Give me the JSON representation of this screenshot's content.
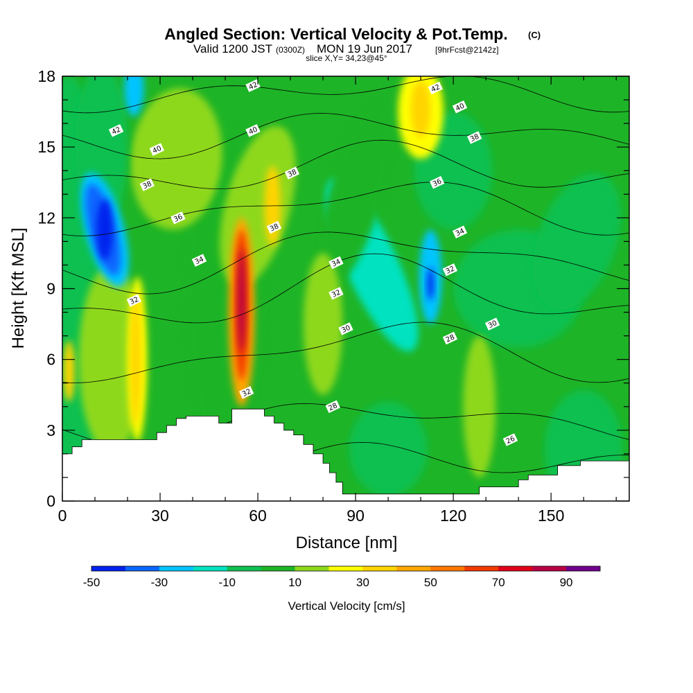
{
  "header": {
    "title": "Angled Section: Vertical Velocity & Pot.Temp.",
    "copyright": "(C)",
    "subtitle_a": "Valid 1200 JST",
    "subtitle_b": "(0300Z)",
    "subtitle_c": "MON 19 Jun 2017",
    "subtitle_d": "[9hrFcst@2142z]",
    "slice": "slice X,Y= 34,23@45°"
  },
  "chart_data": {
    "type": "heatmap",
    "title": "Angled Section: Vertical Velocity & Pot.Temp.",
    "xlabel": "Distance [nm]",
    "ylabel": "Height [Kft MSL]",
    "xlim": [
      0,
      174
    ],
    "ylim": [
      0,
      18
    ],
    "xticks": [
      0,
      30,
      60,
      90,
      120,
      150
    ],
    "yticks": [
      0,
      3,
      6,
      9,
      12,
      15,
      18
    ],
    "grid": false,
    "colorbar": {
      "title": "Vertical Velocity [cm/s]",
      "labels": [
        -50,
        -30,
        -10,
        10,
        30,
        50,
        70,
        90
      ],
      "levels": [
        -50,
        -40,
        -30,
        -20,
        -10,
        0,
        10,
        20,
        30,
        40,
        50,
        60,
        70,
        80,
        90,
        100
      ],
      "colors": [
        "#0022ee",
        "#0a66ff",
        "#00c4ff",
        "#00e2c0",
        "#10c050",
        "#1eb427",
        "#8ed81c",
        "#ffff00",
        "#ffd400",
        "#ffa700",
        "#ff7700",
        "#f23a00",
        "#e00018",
        "#b80045",
        "#70008c"
      ]
    },
    "velocity_features": [
      {
        "x": 13,
        "y": 11.5,
        "value": -50
      },
      {
        "x": 55,
        "y": 8.5,
        "value": 80
      },
      {
        "x": 113,
        "y": 9.2,
        "value": -45
      },
      {
        "x": 110,
        "y": 16.5,
        "value": 35
      },
      {
        "x": 64.5,
        "y": 12.5,
        "value": 30
      },
      {
        "x": 22.5,
        "y": 6,
        "value": 35
      },
      {
        "x": 2,
        "y": 5.5,
        "value": 30
      },
      {
        "x": 22,
        "y": 17.5,
        "value": -30
      }
    ],
    "terrain": {
      "x": [
        0,
        3,
        3,
        6,
        6,
        29,
        29,
        32,
        32,
        35,
        35,
        38,
        38,
        48,
        48,
        52,
        52,
        62,
        62,
        65,
        65,
        68,
        68,
        71,
        71,
        74,
        74,
        77,
        77,
        80,
        80,
        82,
        82,
        84,
        84,
        86,
        86,
        128,
        128,
        140,
        140,
        143,
        143,
        152,
        152,
        159,
        159,
        174,
        174,
        0
      ],
      "y": [
        2.0,
        2.0,
        2.3,
        2.3,
        2.6,
        2.6,
        2.9,
        2.9,
        3.2,
        3.2,
        3.5,
        3.5,
        3.6,
        3.6,
        3.3,
        3.3,
        3.9,
        3.9,
        3.6,
        3.6,
        3.3,
        3.3,
        3.0,
        3.0,
        2.8,
        2.8,
        2.4,
        2.4,
        2.0,
        2.0,
        1.6,
        1.6,
        1.2,
        1.2,
        0.8,
        0.8,
        0.3,
        0.3,
        0.6,
        0.6,
        0.9,
        0.9,
        1.1,
        1.1,
        1.5,
        1.5,
        1.7,
        1.7,
        0,
        0
      ]
    },
    "potential_temperature_contours": [
      {
        "value": 26,
        "label_at": [
          137.5,
          2.6
        ]
      },
      {
        "value": 28,
        "label_at": [
          83,
          4.0
        ]
      },
      {
        "value": 28,
        "label_at": [
          119,
          6.9
        ]
      },
      {
        "value": 30,
        "label_at": [
          87,
          7.3
        ]
      },
      {
        "value": 30,
        "label_at": [
          132,
          7.5
        ]
      },
      {
        "value": 32,
        "label_at": [
          22,
          8.5
        ]
      },
      {
        "value": 32,
        "label_at": [
          56.5,
          4.6
        ]
      },
      {
        "value": 32,
        "label_at": [
          84,
          8.8
        ]
      },
      {
        "value": 32,
        "label_at": [
          119,
          9.8
        ]
      },
      {
        "value": 34,
        "label_at": [
          42,
          10.2
        ]
      },
      {
        "value": 34,
        "label_at": [
          84,
          10.1
        ]
      },
      {
        "value": 34,
        "label_at": [
          122,
          11.4
        ]
      },
      {
        "value": 36,
        "label_at": [
          35.5,
          12.0
        ]
      },
      {
        "value": 36,
        "label_at": [
          115,
          13.5
        ]
      },
      {
        "value": 38,
        "label_at": [
          26,
          13.4
        ]
      },
      {
        "value": 38,
        "label_at": [
          65,
          11.6
        ]
      },
      {
        "value": 38,
        "label_at": [
          70.5,
          13.9
        ]
      },
      {
        "value": 38,
        "label_at": [
          126.5,
          15.4
        ]
      },
      {
        "value": 40,
        "label_at": [
          29,
          14.9
        ]
      },
      {
        "value": 40,
        "label_at": [
          58.5,
          15.7
        ]
      },
      {
        "value": 40,
        "label_at": [
          122,
          16.7
        ]
      },
      {
        "value": 42,
        "label_at": [
          16.5,
          15.7
        ]
      },
      {
        "value": 42,
        "label_at": [
          58.5,
          17.6
        ]
      },
      {
        "value": 42,
        "label_at": [
          114.5,
          17.5
        ]
      }
    ]
  }
}
